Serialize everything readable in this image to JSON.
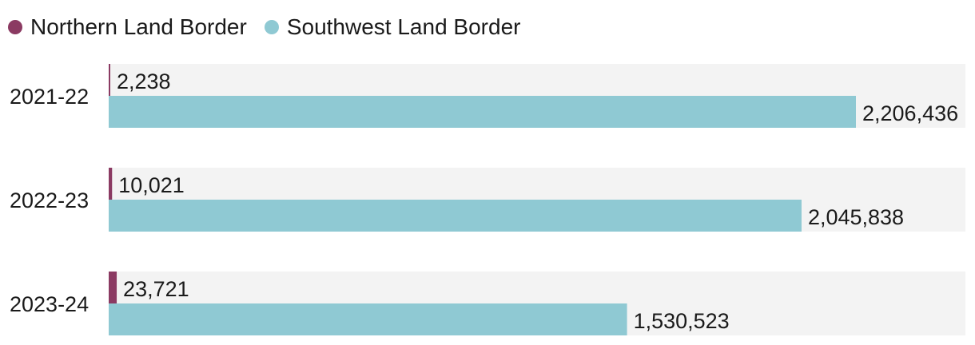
{
  "chart_data": {
    "type": "bar",
    "orientation": "horizontal",
    "categories": [
      "2021-22",
      "2022-23",
      "2023-24"
    ],
    "series": [
      {
        "name": "Northern Land Border",
        "color": "#8b3a62",
        "values": [
          2238,
          10021,
          23721
        ],
        "labels": [
          "2,238",
          "10,021",
          "23,721"
        ]
      },
      {
        "name": "Southwest Land Border",
        "color": "#8fc9d3",
        "values": [
          2206436,
          2045838,
          1530523
        ],
        "labels": [
          "2,206,436",
          "2,045,838",
          "1,530,523"
        ]
      }
    ],
    "xlim": [
      0,
      2206436
    ],
    "legend": "top-left",
    "grid": false,
    "background_color": "#f3f3f3"
  }
}
